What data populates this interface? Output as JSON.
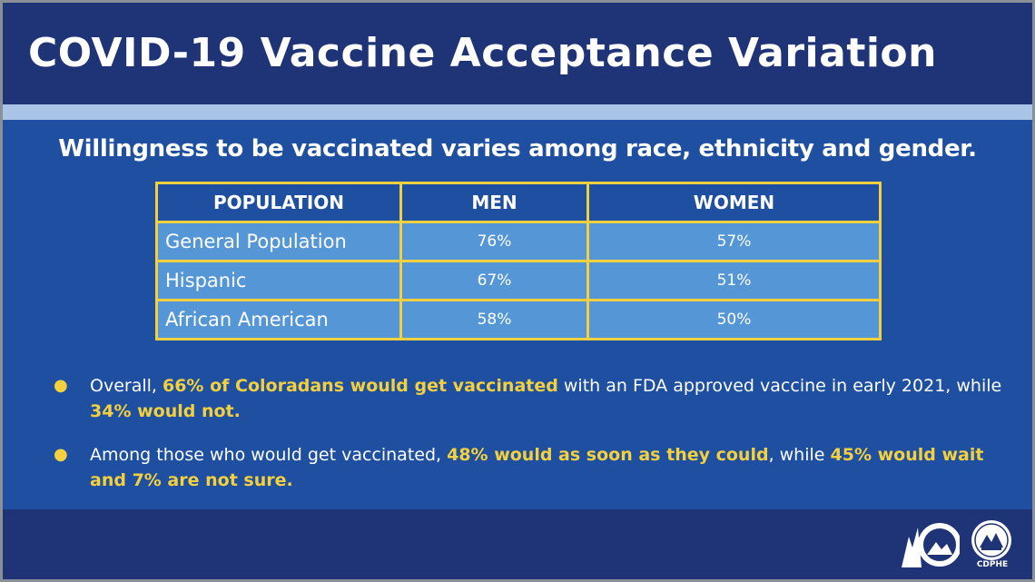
{
  "title": "COVID-19 Vaccine Acceptance Variation",
  "subtitle": "Willingness to be vaccinated varies among race, ethnicity and gender.",
  "table": {
    "headers": [
      "POPULATION",
      "MEN",
      "WOMEN"
    ],
    "rows": [
      {
        "population": "General Population",
        "men": "76%",
        "women": "57%"
      },
      {
        "population": "Hispanic",
        "men": "67%",
        "women": "51%"
      },
      {
        "population": "African American",
        "men": "58%",
        "women": "50%"
      }
    ]
  },
  "bullets": [
    {
      "p1": "Overall, ",
      "h1": "66% of Coloradans would get vaccinated",
      "p2": " with an FDA approved vaccine in early 2021, while ",
      "h2": "34% would not."
    },
    {
      "p1": "Among those who would get vaccinated, ",
      "h1": "48% would as soon as they could",
      "p2": ", while ",
      "h2": "45% would wait and 7% are not sure."
    }
  ],
  "logo_caption": "CDPHE",
  "colors": {
    "header_bg": "#1f3377",
    "body_bg": "#1e4fa0",
    "stripe": "#aac4e8",
    "table_border": "#f4d03f",
    "cell_bg": "#5597d6",
    "highlight": "#f4d03f"
  },
  "icons": [
    "colorado-logo-icon",
    "cdphe-seal-icon",
    "bullet-dot-icon"
  ]
}
